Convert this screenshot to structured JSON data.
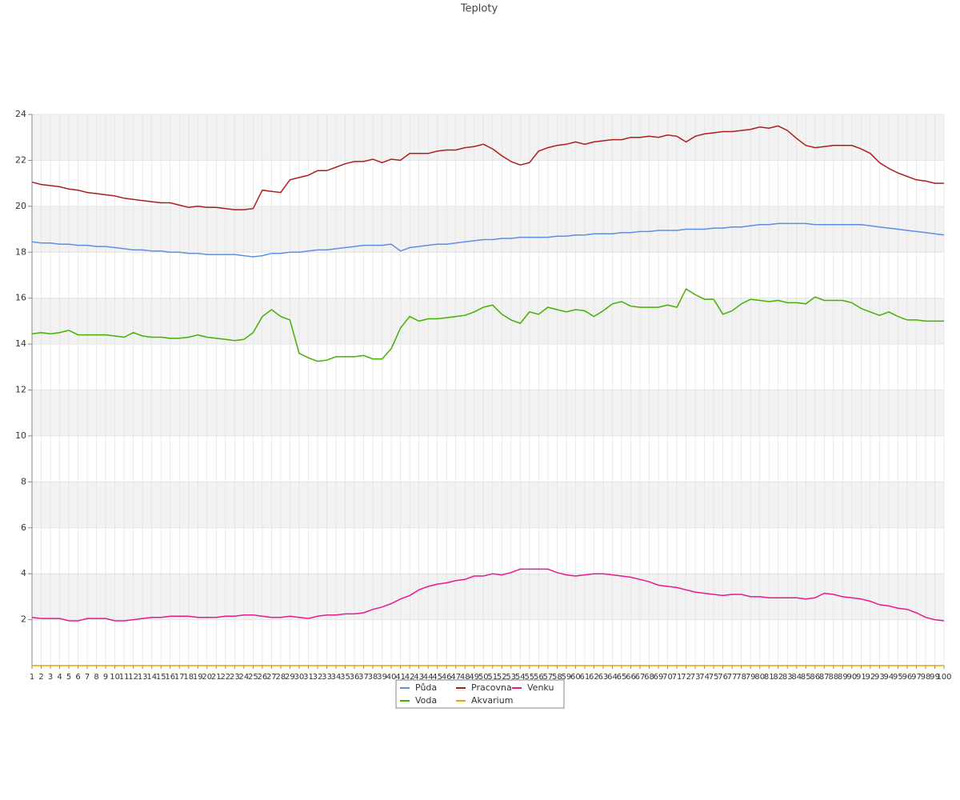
{
  "chart_data": {
    "type": "line",
    "title": "Teploty",
    "categories": [
      "1",
      "2",
      "3",
      "4",
      "5",
      "6",
      "7",
      "8",
      "9",
      "10",
      "11",
      "12",
      "13",
      "14",
      "15",
      "16",
      "17",
      "18",
      "19",
      "20",
      "21",
      "22",
      "23",
      "24",
      "25",
      "26",
      "27",
      "28",
      "29",
      "30",
      "31",
      "32",
      "33",
      "34",
      "35",
      "36",
      "37",
      "38",
      "39",
      "40",
      "41",
      "42",
      "43",
      "44",
      "45",
      "46",
      "47",
      "48",
      "49",
      "50",
      "51",
      "52",
      "53",
      "54",
      "55",
      "56",
      "57",
      "58",
      "59",
      "60",
      "61",
      "62",
      "63",
      "64",
      "65",
      "66",
      "67",
      "68",
      "69",
      "70",
      "71",
      "72",
      "73",
      "74",
      "75",
      "76",
      "77",
      "78",
      "79",
      "80",
      "81",
      "82",
      "83",
      "84",
      "85",
      "86",
      "87",
      "88",
      "89",
      "90",
      "91",
      "92",
      "93",
      "94",
      "95",
      "96",
      "97",
      "98",
      "99",
      "100"
    ],
    "ylim": [
      0,
      24
    ],
    "yticks": [
      2,
      4,
      6,
      8,
      10,
      12,
      14,
      16,
      18,
      20,
      22,
      24
    ],
    "grid": true,
    "series": [
      {
        "name": "Půda",
        "color": "#5b8fe8",
        "values": [
          18.45,
          18.4,
          18.4,
          18.35,
          18.35,
          18.3,
          18.3,
          18.25,
          18.25,
          18.2,
          18.15,
          18.1,
          18.1,
          18.05,
          18.05,
          18.0,
          18.0,
          17.95,
          17.95,
          17.9,
          17.9,
          17.9,
          17.9,
          17.85,
          17.8,
          17.85,
          17.95,
          17.95,
          18.0,
          18.0,
          18.05,
          18.1,
          18.1,
          18.15,
          18.2,
          18.25,
          18.3,
          18.3,
          18.3,
          18.35,
          18.05,
          18.2,
          18.25,
          18.3,
          18.35,
          18.35,
          18.4,
          18.45,
          18.5,
          18.55,
          18.55,
          18.6,
          18.6,
          18.65,
          18.65,
          18.65,
          18.65,
          18.7,
          18.7,
          18.75,
          18.75,
          18.8,
          18.8,
          18.8,
          18.85,
          18.85,
          18.9,
          18.9,
          18.95,
          18.95,
          18.95,
          19.0,
          19.0,
          19.0,
          19.05,
          19.05,
          19.1,
          19.1,
          19.15,
          19.2,
          19.2,
          19.25,
          19.25,
          19.25,
          19.25,
          19.2,
          19.2,
          19.2,
          19.2,
          19.2,
          19.2,
          19.15,
          19.1,
          19.05,
          19.0,
          18.95,
          18.9,
          18.85,
          18.8,
          18.75
        ]
      },
      {
        "name": "Voda",
        "color": "#44b000",
        "values": [
          14.45,
          14.5,
          14.45,
          14.5,
          14.6,
          14.4,
          14.4,
          14.4,
          14.4,
          14.35,
          14.3,
          14.5,
          14.35,
          14.3,
          14.3,
          14.25,
          14.25,
          14.3,
          14.4,
          14.3,
          14.25,
          14.2,
          14.15,
          14.2,
          14.5,
          15.2,
          15.5,
          15.2,
          15.05,
          13.6,
          13.4,
          13.25,
          13.3,
          13.45,
          13.45,
          13.45,
          13.5,
          13.35,
          13.35,
          13.8,
          14.7,
          15.2,
          15.0,
          15.1,
          15.1,
          15.15,
          15.2,
          15.25,
          15.4,
          15.6,
          15.7,
          15.3,
          15.05,
          14.9,
          15.4,
          15.3,
          15.6,
          15.5,
          15.4,
          15.5,
          15.45,
          15.2,
          15.45,
          15.75,
          15.85,
          15.65,
          15.6,
          15.6,
          15.6,
          15.7,
          15.6,
          16.4,
          16.15,
          15.95,
          15.95,
          15.3,
          15.45,
          15.75,
          15.95,
          15.9,
          15.85,
          15.9,
          15.8,
          15.8,
          15.75,
          16.05,
          15.9,
          15.9,
          15.9,
          15.8,
          15.55,
          15.4,
          15.25,
          15.4,
          15.2,
          15.05,
          15.05,
          15.0,
          15.0,
          15.0
        ]
      },
      {
        "name": "Pracovna",
        "color": "#b01c1c",
        "values": [
          21.05,
          20.95,
          20.9,
          20.85,
          20.75,
          20.7,
          20.6,
          20.55,
          20.5,
          20.45,
          20.35,
          20.3,
          20.25,
          20.2,
          20.15,
          20.15,
          20.05,
          19.95,
          20.0,
          19.95,
          19.95,
          19.9,
          19.85,
          19.85,
          19.9,
          20.7,
          20.65,
          20.6,
          21.15,
          21.25,
          21.35,
          21.55,
          21.55,
          21.7,
          21.85,
          21.95,
          21.95,
          22.05,
          21.9,
          22.05,
          22.0,
          22.3,
          22.3,
          22.3,
          22.4,
          22.45,
          22.45,
          22.55,
          22.6,
          22.7,
          22.5,
          22.2,
          21.95,
          21.8,
          21.9,
          22.4,
          22.55,
          22.65,
          22.7,
          22.8,
          22.7,
          22.8,
          22.85,
          22.9,
          22.9,
          23.0,
          23.0,
          23.05,
          23.0,
          23.1,
          23.05,
          22.8,
          23.05,
          23.15,
          23.2,
          23.25,
          23.25,
          23.3,
          23.35,
          23.45,
          23.4,
          23.5,
          23.3,
          22.95,
          22.65,
          22.55,
          22.6,
          22.65,
          22.65,
          22.65,
          22.5,
          22.3,
          21.9,
          21.65,
          21.45,
          21.3,
          21.15,
          21.1,
          21.0,
          21.0
        ]
      },
      {
        "name": "Akvarium",
        "color": "#e8a000",
        "values": [
          0,
          0,
          0,
          0,
          0,
          0,
          0,
          0,
          0,
          0,
          0,
          0,
          0,
          0,
          0,
          0,
          0,
          0,
          0,
          0,
          0,
          0,
          0,
          0,
          0,
          0,
          0,
          0,
          0,
          0,
          0,
          0,
          0,
          0,
          0,
          0,
          0,
          0,
          0,
          0,
          0,
          0,
          0,
          0,
          0,
          0,
          0,
          0,
          0,
          0,
          0,
          0,
          0,
          0,
          0,
          0,
          0,
          0,
          0,
          0,
          0,
          0,
          0,
          0,
          0,
          0,
          0,
          0,
          0,
          0,
          0,
          0,
          0,
          0,
          0,
          0,
          0,
          0,
          0,
          0,
          0,
          0,
          0,
          0,
          0,
          0,
          0,
          0,
          0,
          0,
          0,
          0,
          0,
          0,
          0,
          0,
          0,
          0,
          0,
          0
        ]
      },
      {
        "name": "Venku",
        "color": "#e8188f",
        "values": [
          2.1,
          2.05,
          2.05,
          2.05,
          1.95,
          1.95,
          2.05,
          2.05,
          2.05,
          1.95,
          1.95,
          2.0,
          2.05,
          2.1,
          2.1,
          2.15,
          2.15,
          2.15,
          2.1,
          2.1,
          2.1,
          2.15,
          2.15,
          2.2,
          2.2,
          2.15,
          2.1,
          2.1,
          2.15,
          2.1,
          2.05,
          2.15,
          2.2,
          2.2,
          2.25,
          2.25,
          2.3,
          2.45,
          2.55,
          2.7,
          2.9,
          3.05,
          3.3,
          3.45,
          3.55,
          3.6,
          3.7,
          3.75,
          3.9,
          3.9,
          4.0,
          3.95,
          4.05,
          4.2,
          4.2,
          4.2,
          4.2,
          4.05,
          3.95,
          3.9,
          3.95,
          4.0,
          4.0,
          3.95,
          3.9,
          3.85,
          3.75,
          3.65,
          3.5,
          3.45,
          3.4,
          3.3,
          3.2,
          3.15,
          3.1,
          3.05,
          3.1,
          3.1,
          3.0,
          3.0,
          2.95,
          2.95,
          2.95,
          2.95,
          2.9,
          2.95,
          3.15,
          3.1,
          3.0,
          2.95,
          2.9,
          2.8,
          2.65,
          2.6,
          2.5,
          2.45,
          2.3,
          2.1,
          2.0,
          1.95
        ]
      }
    ]
  }
}
